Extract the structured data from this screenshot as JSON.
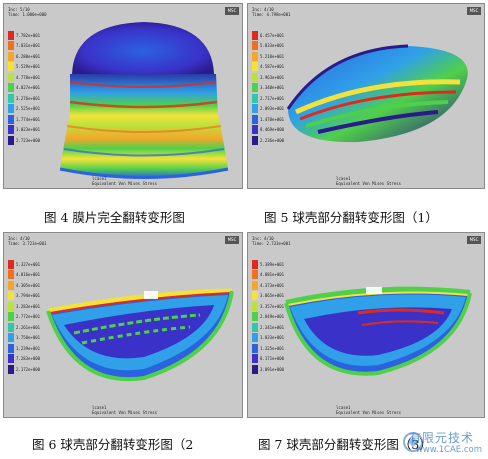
{
  "figures": [
    {
      "id": "fig4",
      "caption": "图 4  膜片完全翻转变形图",
      "header_lines": [
        "Inc:   5/10",
        "Time:  1.000e+000"
      ],
      "badge": "MSC",
      "legend_values": [
        "7.782e+001",
        "7.031e+001",
        "6.280e+001",
        "5.529e+001",
        "4.778e+001",
        "4.027e+001",
        "3.276e+001",
        "2.525e+001",
        "1.774e+001",
        "1.023e+001",
        "2.723e+000"
      ],
      "footer_lines": [
        "lcase1",
        "Equivalent Von Mises Stress"
      ]
    },
    {
      "id": "fig5",
      "caption": "图 5  球壳部分翻转变形图（1）",
      "header_lines": [
        "Inc:   4/10",
        "Time:  4.798e+001"
      ],
      "badge": "MSC",
      "legend_values": [
        "6.457e+001",
        "5.833e+001",
        "5.210e+001",
        "4.587e+001",
        "3.963e+001",
        "3.340e+001",
        "2.717e+001",
        "2.093e+001",
        "1.470e+001",
        "8.469e+000",
        "2.236e+000"
      ],
      "footer_lines": [
        "lcase1",
        "Equivalent Von Mises Stress"
      ]
    },
    {
      "id": "fig6",
      "caption": "图 6  球壳部分翻转变形图（2",
      "header_lines": [
        "Inc:   4/10",
        "Time:  3.723e+001"
      ],
      "badge": "MSC",
      "legend_values": [
        "5.327e+001",
        "4.816e+001",
        "4.305e+001",
        "3.794e+001",
        "3.283e+001",
        "2.772e+001",
        "2.261e+001",
        "1.750e+001",
        "1.239e+001",
        "7.283e+000",
        "2.172e+000"
      ],
      "footer_lines": [
        "lcase1",
        "Equivalent Von Mises Stress"
      ]
    },
    {
      "id": "fig7",
      "caption": "图 7  球壳部分翻转变形图（3）",
      "header_lines": [
        "Inc:   4/10",
        "Time:  2.733e+001"
      ],
      "badge": "MSC",
      "legend_values": [
        "5.389e+001",
        "4.881e+001",
        "4.373e+001",
        "3.865e+001",
        "3.357e+001",
        "2.849e+001",
        "2.341e+001",
        "1.833e+001",
        "1.325e+001",
        "8.171e+000",
        "3.091e+000"
      ],
      "footer_lines": [
        "lcase1",
        "Equivalent Von Mises Stress"
      ]
    }
  ],
  "legend_colors": [
    "#e02a20",
    "#f07020",
    "#f6a62a",
    "#f4e23a",
    "#b9e23c",
    "#4fd04a",
    "#2fc8a8",
    "#30a0e8",
    "#2a62e0",
    "#3a32c8",
    "#2a1a8a"
  ],
  "watermark": {
    "main": "有限元技术",
    "sub": "www.1CAE.com"
  }
}
